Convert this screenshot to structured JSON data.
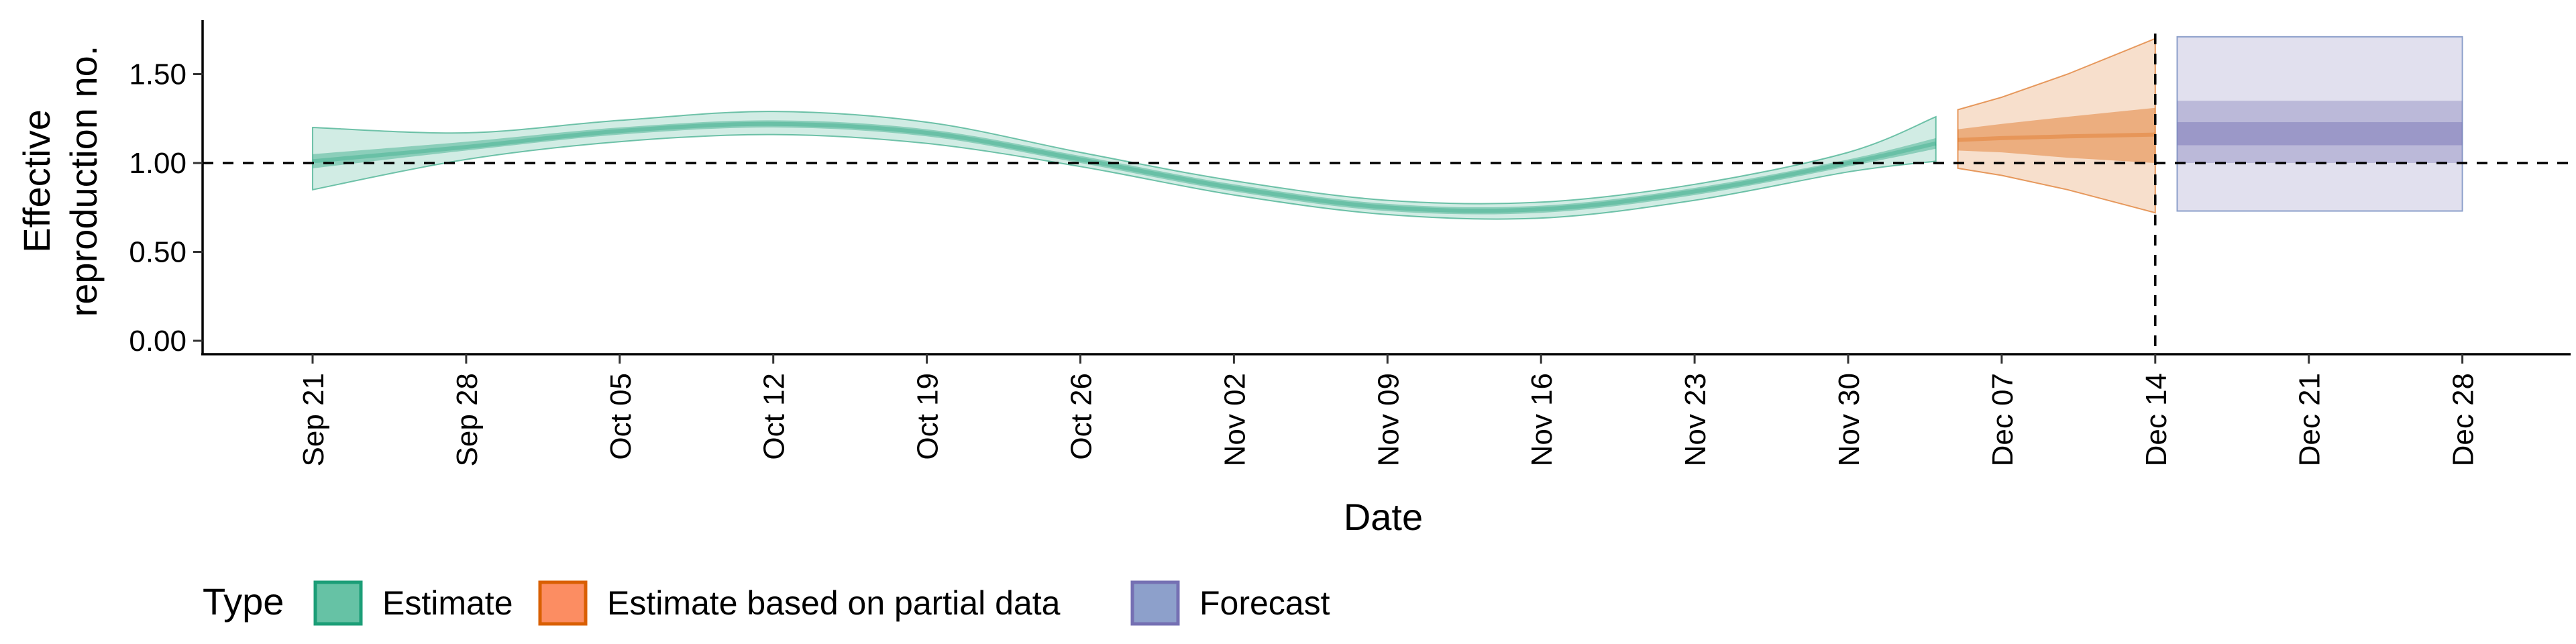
{
  "chart_data": {
    "type": "area",
    "xlabel": "Date",
    "ylabel_lines": [
      "Effective",
      "reproduction no."
    ],
    "ylim": [
      0,
      1.8
    ],
    "y_ticks": [
      0.0,
      0.5,
      1.0,
      1.5
    ],
    "y_tick_labels": [
      "0.00",
      "0.50",
      "1.00",
      "1.50"
    ],
    "x_range": [
      "2020-09-16",
      "2021-01-01"
    ],
    "x_ticks": [
      "2020-09-21",
      "2020-09-28",
      "2020-10-05",
      "2020-10-12",
      "2020-10-19",
      "2020-10-26",
      "2020-11-02",
      "2020-11-09",
      "2020-11-16",
      "2020-11-23",
      "2020-11-30",
      "2020-12-07",
      "2020-12-14",
      "2020-12-21",
      "2020-12-28"
    ],
    "x_tick_labels": [
      "Sep 21",
      "Sep 28",
      "Oct 05",
      "Oct 12",
      "Oct 19",
      "Oct 26",
      "Nov 02",
      "Nov 09",
      "Nov 16",
      "Nov 23",
      "Nov 30",
      "Dec 07",
      "Dec 14",
      "Dec 21",
      "Dec 28"
    ],
    "reference_hline": 1.0,
    "reference_vline": "2020-12-14",
    "legend_title": "Type",
    "legend_position": "bottom-left",
    "series": [
      {
        "name": "Estimate",
        "color": "#1b9e77",
        "fill": "#66c2a5",
        "points": [
          {
            "x": "2020-09-21",
            "median": 1.01,
            "lower_50": 0.97,
            "upper_50": 1.05,
            "lower_90": 0.85,
            "upper_90": 1.2
          },
          {
            "x": "2020-09-28",
            "median": 1.09,
            "lower_50": 1.07,
            "upper_50": 1.12,
            "lower_90": 1.02,
            "upper_90": 1.17
          },
          {
            "x": "2020-10-05",
            "median": 1.18,
            "lower_50": 1.16,
            "upper_50": 1.2,
            "lower_90": 1.12,
            "upper_90": 1.24
          },
          {
            "x": "2020-10-12",
            "median": 1.22,
            "lower_50": 1.2,
            "upper_50": 1.24,
            "lower_90": 1.16,
            "upper_90": 1.29
          },
          {
            "x": "2020-10-19",
            "median": 1.17,
            "lower_50": 1.15,
            "upper_50": 1.19,
            "lower_90": 1.11,
            "upper_90": 1.23
          },
          {
            "x": "2020-10-26",
            "median": 1.02,
            "lower_50": 1.0,
            "upper_50": 1.04,
            "lower_90": 0.98,
            "upper_90": 1.06
          },
          {
            "x": "2020-11-02",
            "median": 0.86,
            "lower_50": 0.84,
            "upper_50": 0.88,
            "lower_90": 0.82,
            "upper_90": 0.9
          },
          {
            "x": "2020-11-09",
            "median": 0.75,
            "lower_50": 0.73,
            "upper_50": 0.77,
            "lower_90": 0.71,
            "upper_90": 0.79
          },
          {
            "x": "2020-11-16",
            "median": 0.74,
            "lower_50": 0.72,
            "upper_50": 0.76,
            "lower_90": 0.69,
            "upper_90": 0.78
          },
          {
            "x": "2020-11-23",
            "median": 0.84,
            "lower_50": 0.82,
            "upper_50": 0.86,
            "lower_90": 0.79,
            "upper_90": 0.88
          },
          {
            "x": "2020-11-30",
            "median": 1.0,
            "lower_50": 0.98,
            "upper_50": 1.02,
            "lower_90": 0.95,
            "upper_90": 1.06
          },
          {
            "x": "2020-12-04",
            "median": 1.11,
            "lower_50": 1.08,
            "upper_50": 1.14,
            "lower_90": 1.01,
            "upper_90": 1.26
          }
        ]
      },
      {
        "name": "Estimate based on partial data",
        "color": "#d95f02",
        "fill": "#fc8d62",
        "points": [
          {
            "x": "2020-12-05",
            "median": 1.13,
            "lower_50": 1.07,
            "upper_50": 1.19,
            "lower_90": 0.97,
            "upper_90": 1.3
          },
          {
            "x": "2020-12-07",
            "median": 1.14,
            "lower_50": 1.06,
            "upper_50": 1.22,
            "lower_90": 0.93,
            "upper_90": 1.37
          },
          {
            "x": "2020-12-10",
            "median": 1.15,
            "lower_50": 1.03,
            "upper_50": 1.26,
            "lower_90": 0.85,
            "upper_90": 1.5
          },
          {
            "x": "2020-12-14",
            "median": 1.16,
            "lower_50": 1.0,
            "upper_50": 1.31,
            "lower_90": 0.72,
            "upper_90": 1.7
          }
        ]
      },
      {
        "name": "Forecast",
        "color": "#7570b3",
        "fill": "#8da0cb",
        "points": [
          {
            "x": "2020-12-15",
            "median": 1.17,
            "lower_50": 1.1,
            "upper_50": 1.23,
            "lower_90": 1.0,
            "upper_90": 1.35,
            "lower_95": 0.73,
            "upper_95": 1.71
          },
          {
            "x": "2020-12-28",
            "median": 1.17,
            "lower_50": 1.1,
            "upper_50": 1.23,
            "lower_90": 1.0,
            "upper_90": 1.35,
            "lower_95": 0.73,
            "upper_95": 1.71
          }
        ]
      }
    ]
  }
}
